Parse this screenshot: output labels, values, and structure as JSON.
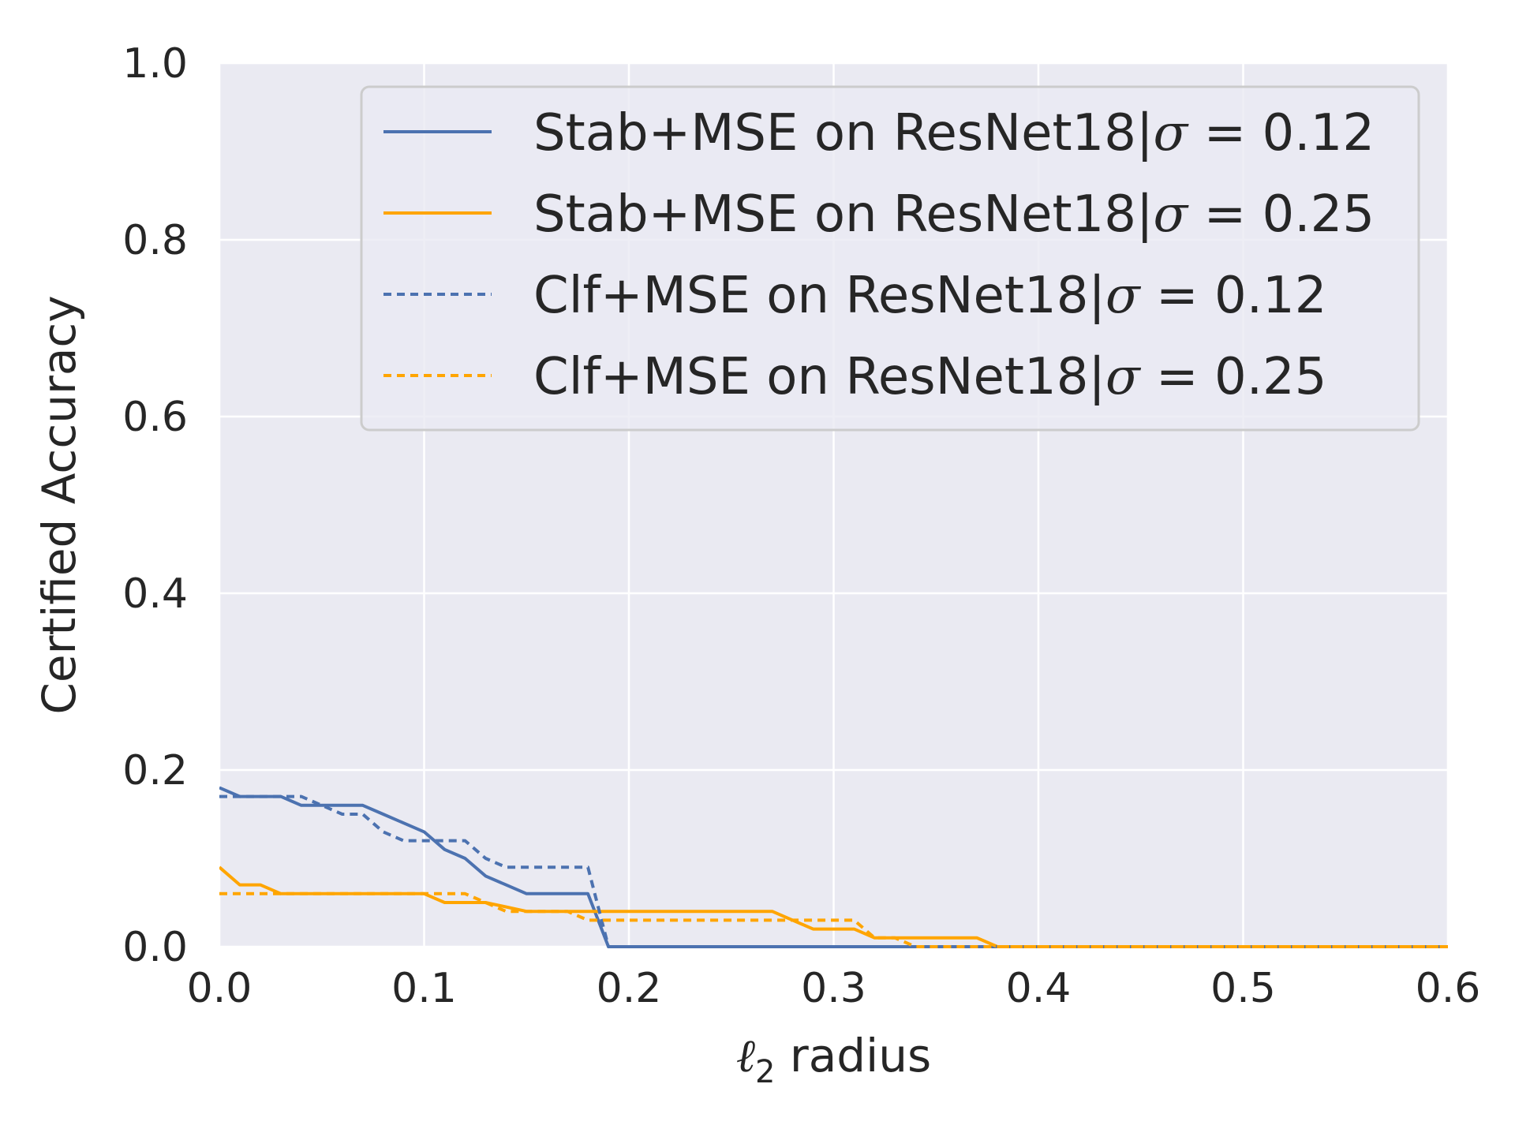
{
  "chart_data": {
    "type": "line",
    "title": "",
    "xlabel_main": "ℓ",
    "xlabel_sub": "2",
    "xlabel_rest": " radius",
    "ylabel": "Certified Accuracy",
    "xlim": [
      0.0,
      0.6
    ],
    "ylim": [
      0.0,
      1.0
    ],
    "xticks": [
      "0.0",
      "0.1",
      "0.2",
      "0.3",
      "0.4",
      "0.5",
      "0.6"
    ],
    "yticks": [
      "0.0",
      "0.2",
      "0.4",
      "0.6",
      "0.8",
      "1.0"
    ],
    "grid": true,
    "legend_position": "top-right",
    "colors": {
      "background": "#eaeaf2",
      "grid": "#ffffff",
      "blue": "#4c72b0",
      "orange": "#ffa500"
    },
    "series": [
      {
        "name": "Stab+MSE on ResNet18|σ = 0.12",
        "label_prefix": "Stab+MSE on ResNet18|",
        "label_sigma": "σ",
        "label_value": " = 0.12",
        "color": "#4c72b0",
        "dash": "solid",
        "x": [
          0.0,
          0.01,
          0.02,
          0.03,
          0.04,
          0.05,
          0.06,
          0.07,
          0.08,
          0.09,
          0.1,
          0.11,
          0.12,
          0.13,
          0.14,
          0.15,
          0.16,
          0.17,
          0.18,
          0.19,
          0.2,
          0.3,
          0.4,
          0.5,
          0.6
        ],
        "y": [
          0.18,
          0.17,
          0.17,
          0.17,
          0.16,
          0.16,
          0.16,
          0.16,
          0.15,
          0.14,
          0.13,
          0.11,
          0.1,
          0.08,
          0.07,
          0.06,
          0.06,
          0.06,
          0.06,
          0.0,
          0.0,
          0.0,
          0.0,
          0.0,
          0.0
        ]
      },
      {
        "name": "Stab+MSE on ResNet18|σ = 0.25",
        "label_prefix": "Stab+MSE on ResNet18|",
        "label_sigma": "σ",
        "label_value": " = 0.25",
        "color": "#ffa500",
        "dash": "solid",
        "x": [
          0.0,
          0.01,
          0.02,
          0.03,
          0.04,
          0.1,
          0.11,
          0.13,
          0.15,
          0.27,
          0.29,
          0.31,
          0.32,
          0.37,
          0.38,
          0.6
        ],
        "y": [
          0.09,
          0.07,
          0.07,
          0.06,
          0.06,
          0.06,
          0.05,
          0.05,
          0.04,
          0.04,
          0.02,
          0.02,
          0.01,
          0.01,
          0.0,
          0.0
        ]
      },
      {
        "name": "Clf+MSE on ResNet18|σ = 0.12",
        "label_prefix": "Clf+MSE on ResNet18|",
        "label_sigma": "σ",
        "label_value": " = 0.12",
        "color": "#4c72b0",
        "dash": "dotted",
        "x": [
          0.0,
          0.01,
          0.03,
          0.04,
          0.05,
          0.06,
          0.07,
          0.08,
          0.09,
          0.1,
          0.11,
          0.12,
          0.13,
          0.14,
          0.15,
          0.16,
          0.17,
          0.18,
          0.19,
          0.2,
          0.3,
          0.4,
          0.5,
          0.6
        ],
        "y": [
          0.17,
          0.17,
          0.17,
          0.17,
          0.16,
          0.15,
          0.15,
          0.13,
          0.12,
          0.12,
          0.12,
          0.12,
          0.1,
          0.09,
          0.09,
          0.09,
          0.09,
          0.09,
          0.0,
          0.0,
          0.0,
          0.0,
          0.0,
          0.0
        ]
      },
      {
        "name": "Clf+MSE on ResNet18|σ = 0.25",
        "label_prefix": "Clf+MSE on ResNet18|",
        "label_sigma": "σ",
        "label_value": " = 0.25",
        "color": "#ffa500",
        "dash": "dotted",
        "x": [
          0.0,
          0.02,
          0.03,
          0.1,
          0.11,
          0.12,
          0.13,
          0.14,
          0.15,
          0.17,
          0.18,
          0.2,
          0.31,
          0.32,
          0.33,
          0.34,
          0.6
        ],
        "y": [
          0.06,
          0.06,
          0.06,
          0.06,
          0.06,
          0.06,
          0.05,
          0.04,
          0.04,
          0.04,
          0.03,
          0.03,
          0.03,
          0.01,
          0.01,
          0.0,
          0.0
        ]
      }
    ]
  }
}
